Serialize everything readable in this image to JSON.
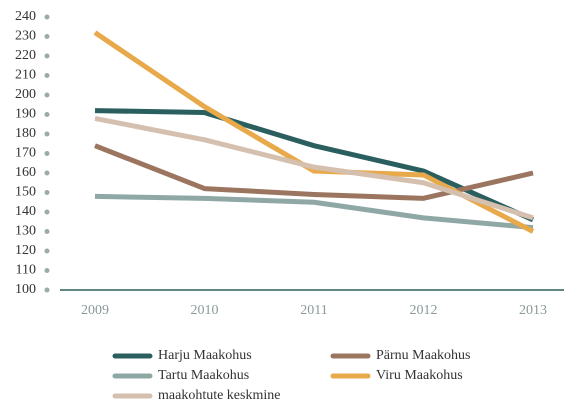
{
  "chart_data": {
    "type": "line",
    "categories": [
      "2009",
      "2010",
      "2011",
      "2012",
      "2013"
    ],
    "series": [
      {
        "name": "Harju Maakohus",
        "color": "#2b5f5f",
        "values": [
          192,
          191,
          174,
          161,
          136
        ]
      },
      {
        "name": "Pärnu Maakohus",
        "color": "#9c7560",
        "values": [
          174,
          152,
          149,
          147,
          160
        ]
      },
      {
        "name": "Tartu Maakohus",
        "color": "#8fa8a6",
        "values": [
          148,
          147,
          145,
          137,
          132
        ]
      },
      {
        "name": "Viru Maakohus",
        "color": "#e8a94b",
        "values": [
          232,
          194,
          161,
          159,
          130
        ]
      },
      {
        "name": "maakohtute keskmine",
        "color": "#d5bfae",
        "values": [
          188,
          177,
          163,
          155,
          137
        ]
      }
    ],
    "ylim": [
      100,
      240
    ],
    "yticks": [
      100,
      110,
      120,
      130,
      140,
      150,
      160,
      170,
      180,
      190,
      200,
      210,
      220,
      230,
      240
    ],
    "grid": false
  }
}
